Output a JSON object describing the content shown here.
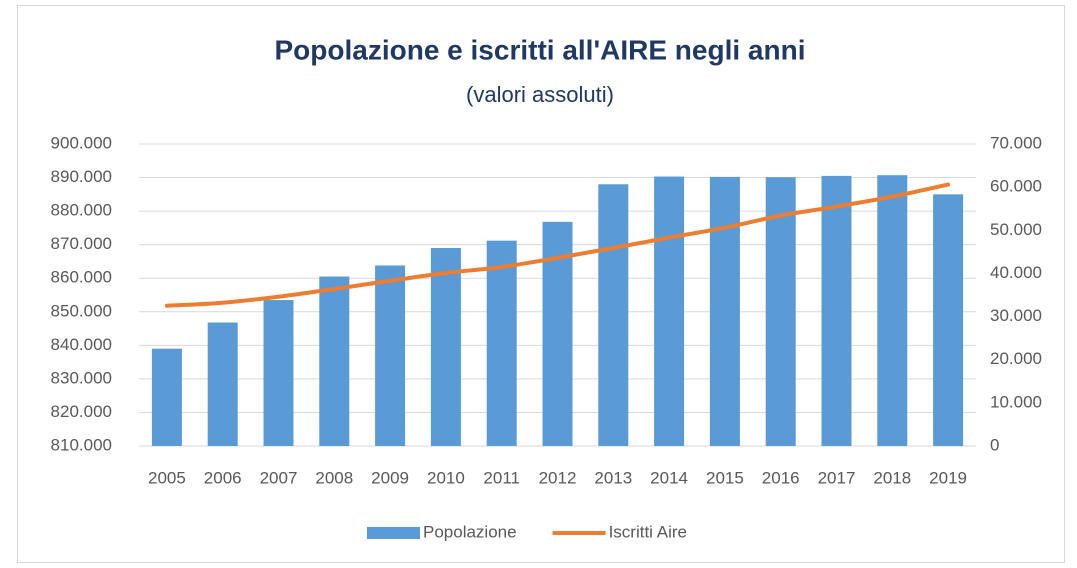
{
  "chart_data": {
    "type": "bar-line",
    "title": "Popolazione e iscritti all'AIRE negli anni",
    "subtitle": "(valori assoluti)",
    "categories": [
      "2005",
      "2006",
      "2007",
      "2008",
      "2009",
      "2010",
      "2011",
      "2012",
      "2013",
      "2014",
      "2015",
      "2016",
      "2017",
      "2018",
      "2019"
    ],
    "series": [
      {
        "name": "Popolazione",
        "type": "bar",
        "color": "#5b9bd5",
        "values": [
          839000,
          846800,
          853500,
          860500,
          863800,
          869000,
          871200,
          876800,
          888000,
          890300,
          890200,
          890100,
          890500,
          890700,
          885000
        ]
      },
      {
        "name": "Iscritti Aire",
        "type": "line",
        "axis": "y2",
        "color": "#ed7d31",
        "values": [
          32500,
          33200,
          34600,
          36400,
          38300,
          40100,
          41500,
          43600,
          45900,
          48300,
          50600,
          53400,
          55500,
          57800,
          60600
        ]
      }
    ],
    "ylim": [
      810000,
      900000
    ],
    "yticks": [
      {
        "value": 810000,
        "label": "810.000"
      },
      {
        "value": 820000,
        "label": "820.000"
      },
      {
        "value": 830000,
        "label": "830.000"
      },
      {
        "value": 840000,
        "label": "840.000"
      },
      {
        "value": 850000,
        "label": "850.000"
      },
      {
        "value": 860000,
        "label": "860.000"
      },
      {
        "value": 870000,
        "label": "870.000"
      },
      {
        "value": 880000,
        "label": "880.000"
      },
      {
        "value": 890000,
        "label": "890.000"
      },
      {
        "value": 900000,
        "label": "900.000"
      }
    ],
    "y2lim": [
      0,
      70000
    ],
    "y2ticks": [
      0,
      {
        "value": 10000,
        "label": "10.000"
      },
      {
        "value": 20000,
        "label": "20.000"
      },
      {
        "value": 30000,
        "label": "30.000"
      },
      {
        "value": 40000,
        "label": "40.000"
      },
      {
        "value": 50000,
        "label": "50.000"
      },
      {
        "value": 60000,
        "label": "60.000"
      },
      {
        "value": 70000,
        "label": "70.000"
      }
    ],
    "grid": true,
    "legend": "bottom"
  }
}
